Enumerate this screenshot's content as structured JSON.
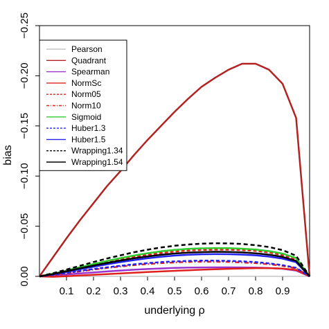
{
  "chart_data": {
    "type": "line",
    "title": "",
    "xlabel": "underlying ρ",
    "ylabel": "bias",
    "xlim": [
      0,
      1
    ],
    "ylim": [
      0.0,
      -0.25
    ],
    "y_axis_reversed": true,
    "grid": false,
    "legend_position": "top-left",
    "x_ticks": [
      "0.1",
      "0.2",
      "0.3",
      "0.4",
      "0.5",
      "0.6",
      "0.7",
      "0.8",
      "0.9"
    ],
    "x_tick_values": [
      0.1,
      0.2,
      0.3,
      0.4,
      0.5,
      0.6,
      0.7,
      0.8,
      0.9
    ],
    "y_ticks": [
      "0.00",
      "−0.05",
      "−0.10",
      "−0.15",
      "−0.20",
      "−0.25"
    ],
    "y_tick_values": [
      0.0,
      -0.05,
      -0.1,
      -0.15,
      -0.2,
      -0.25
    ],
    "x": [
      0.0,
      0.05,
      0.1,
      0.15,
      0.2,
      0.25,
      0.3,
      0.35,
      0.4,
      0.45,
      0.5,
      0.55,
      0.6,
      0.65,
      0.7,
      0.75,
      0.8,
      0.85,
      0.9,
      0.95,
      1.0
    ],
    "series": [
      {
        "name": "Pearson",
        "color": "#bbbbbb",
        "dash": "solid",
        "width": 1.2,
        "values": [
          0,
          0,
          0,
          0,
          0,
          0,
          0,
          0,
          0,
          0,
          0,
          0,
          0,
          0,
          0,
          0,
          0,
          0,
          0,
          0,
          0
        ]
      },
      {
        "name": "Quadrant",
        "color": "#b22222",
        "dash": "solid",
        "width": 2.5,
        "values": [
          0,
          -0.019,
          -0.038,
          -0.056,
          -0.073,
          -0.09,
          -0.105,
          -0.121,
          -0.136,
          -0.15,
          -0.164,
          -0.177,
          -0.189,
          -0.198,
          -0.206,
          -0.212,
          -0.212,
          -0.206,
          -0.192,
          -0.158,
          0
        ]
      },
      {
        "name": "Spearman",
        "color": "#9932cc",
        "dash": "solid",
        "width": 2.5,
        "values": [
          0,
          -0.0009,
          -0.0019,
          -0.0029,
          -0.0039,
          -0.0049,
          -0.0058,
          -0.0066,
          -0.0073,
          -0.0079,
          -0.0084,
          -0.0087,
          -0.0089,
          -0.009,
          -0.009,
          -0.0089,
          -0.0087,
          -0.0083,
          -0.0076,
          -0.0058,
          0
        ]
      },
      {
        "name": "NormSc",
        "color": "#e0201c",
        "dash": "solid",
        "width": 2.5,
        "values": [
          0,
          0.0004,
          -0.0002,
          -0.0008,
          -0.0015,
          -0.0022,
          -0.0029,
          -0.0036,
          -0.0043,
          -0.0049,
          -0.0055,
          -0.0061,
          -0.0066,
          -0.0071,
          -0.0075,
          -0.0079,
          -0.0082,
          -0.0082,
          -0.0078,
          -0.0064,
          0
        ]
      },
      {
        "name": "Norm05",
        "color": "#e0201c",
        "dash": "5,3",
        "width": 2.5,
        "values": [
          0,
          -0.0024,
          -0.0054,
          -0.0085,
          -0.0115,
          -0.0144,
          -0.017,
          -0.0194,
          -0.0215,
          -0.0233,
          -0.0247,
          -0.0257,
          -0.0263,
          -0.0266,
          -0.0266,
          -0.0262,
          -0.0254,
          -0.0238,
          -0.0212,
          -0.0166,
          0
        ]
      },
      {
        "name": "Norm10",
        "color": "#e0201c",
        "dash": "6,3,1.5,3",
        "width": 2.5,
        "values": [
          0,
          -0.0014,
          -0.0032,
          -0.005,
          -0.0068,
          -0.0084,
          -0.0099,
          -0.0112,
          -0.0123,
          -0.0132,
          -0.0139,
          -0.0144,
          -0.0146,
          -0.0146,
          -0.0144,
          -0.0139,
          -0.0132,
          -0.0121,
          -0.0105,
          -0.008,
          0
        ]
      },
      {
        "name": "Sigmoid",
        "color": "#2ecc2e",
        "dash": "solid",
        "width": 2.5,
        "values": [
          0,
          -0.0026,
          -0.0058,
          -0.0091,
          -0.0123,
          -0.0154,
          -0.0182,
          -0.0208,
          -0.0231,
          -0.025,
          -0.0264,
          -0.0274,
          -0.028,
          -0.0282,
          -0.0281,
          -0.0276,
          -0.0267,
          -0.0252,
          -0.0227,
          -0.0182,
          0
        ]
      },
      {
        "name": "Huber1.3",
        "color": "#2222ee",
        "dash": "5,3",
        "width": 2.5,
        "values": [
          0,
          -0.0015,
          -0.0034,
          -0.0054,
          -0.0073,
          -0.009,
          -0.0106,
          -0.012,
          -0.0132,
          -0.0142,
          -0.0149,
          -0.0154,
          -0.0157,
          -0.0157,
          -0.0155,
          -0.015,
          -0.0142,
          -0.013,
          -0.0112,
          -0.0085,
          0
        ]
      },
      {
        "name": "Huber1.5",
        "color": "#2222ee",
        "dash": "solid",
        "width": 2.5,
        "values": [
          0,
          -0.002,
          -0.0045,
          -0.0071,
          -0.0096,
          -0.012,
          -0.0142,
          -0.0162,
          -0.018,
          -0.0195,
          -0.0207,
          -0.0215,
          -0.022,
          -0.0222,
          -0.0221,
          -0.0217,
          -0.021,
          -0.0197,
          -0.0177,
          -0.0141,
          0
        ]
      },
      {
        "name": "Wrapping1.34",
        "color": "#000000",
        "dash": "6,4",
        "width": 2.5,
        "values": [
          0,
          -0.0031,
          -0.0068,
          -0.0106,
          -0.0143,
          -0.0178,
          -0.021,
          -0.024,
          -0.0266,
          -0.0288,
          -0.0305,
          -0.0318,
          -0.0326,
          -0.033,
          -0.0329,
          -0.0323,
          -0.0311,
          -0.0292,
          -0.0262,
          -0.0206,
          0
        ]
      },
      {
        "name": "Wrapping1.54",
        "color": "#000000",
        "dash": "solid",
        "width": 2.5,
        "values": [
          0,
          -0.0023,
          -0.0051,
          -0.008,
          -0.0108,
          -0.0134,
          -0.0158,
          -0.018,
          -0.0199,
          -0.0215,
          -0.0228,
          -0.0237,
          -0.0242,
          -0.0245,
          -0.0244,
          -0.0239,
          -0.023,
          -0.0216,
          -0.0194,
          -0.0154,
          0
        ]
      }
    ]
  }
}
